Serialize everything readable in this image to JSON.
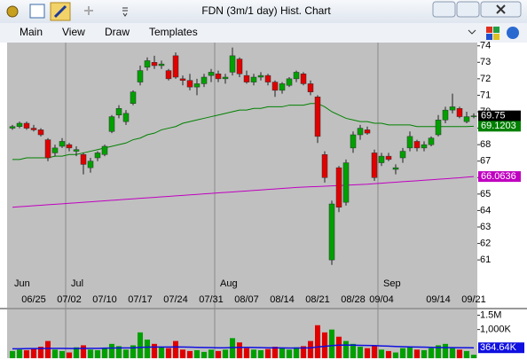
{
  "window": {
    "title": "FDN (3m/1 day) Hist. Chart"
  },
  "menu": [
    "Main",
    "View",
    "Draw",
    "Templates"
  ],
  "chart_data": [
    {
      "type": "candlestick",
      "categories": [
        null,
        null,
        null,
        "06/25",
        null,
        null,
        null,
        null,
        "07/02",
        null,
        null,
        null,
        null,
        "07/10",
        null,
        null,
        null,
        null,
        "07/17",
        null,
        null,
        null,
        null,
        "07/24",
        null,
        null,
        null,
        null,
        "07/31",
        null,
        null,
        null,
        null,
        "08/07",
        null,
        null,
        null,
        null,
        "08/14",
        null,
        null,
        null,
        null,
        "08/21",
        null,
        null,
        null,
        null,
        "08/28",
        null,
        null,
        null,
        "09/04",
        null,
        null,
        null,
        null,
        null,
        null,
        null,
        "09/14",
        null,
        null,
        null,
        null,
        "09/21"
      ],
      "months": [
        {
          "label": "Jun",
          "index": 0
        },
        {
          "label": "Jul",
          "index": 8
        },
        {
          "label": "Aug",
          "index": 29
        },
        {
          "label": "Sep",
          "index": 52
        }
      ],
      "open": [
        69.0,
        69.1,
        69.3,
        69.0,
        68.9,
        68.3,
        67.5,
        67.9,
        68.0,
        67.6,
        67.4,
        66.6,
        67.2,
        67.4,
        68.8,
        69.8,
        69.4,
        70.5,
        71.8,
        72.7,
        73.0,
        72.8,
        72.5,
        73.4,
        72.0,
        71.9,
        71.5,
        71.7,
        72.2,
        72.3,
        72.0,
        72.4,
        73.2,
        72.2,
        71.8,
        72.1,
        72.2,
        71.8,
        71.3,
        71.6,
        72.0,
        72.3,
        71.7,
        70.9,
        67.4,
        61.0,
        66.6,
        64.5,
        67.8,
        68.6,
        68.9,
        67.5,
        66.9,
        67.3,
        66.5,
        67.2,
        67.8,
        68.2,
        67.8,
        68.0,
        68.6,
        69.5,
        70.1,
        70.2,
        69.4,
        69.7
      ],
      "high": [
        69.2,
        69.4,
        69.4,
        69.2,
        69.0,
        68.4,
        68.0,
        68.4,
        68.1,
        67.9,
        67.5,
        67.2,
        67.6,
        68.0,
        69.8,
        70.4,
        70.1,
        71.3,
        72.8,
        73.3,
        73.4,
        73.1,
        72.6,
        73.6,
        72.2,
        72.3,
        72.0,
        72.3,
        72.6,
        72.5,
        72.3,
        73.9,
        73.3,
        72.5,
        72.3,
        72.4,
        72.3,
        71.9,
        71.8,
        72.1,
        72.5,
        72.4,
        71.9,
        71.0,
        67.6,
        64.6,
        66.7,
        67.1,
        68.8,
        69.2,
        69.1,
        67.7,
        67.5,
        67.5,
        66.8,
        67.8,
        68.8,
        68.3,
        68.2,
        68.5,
        69.8,
        70.3,
        71.1,
        70.3,
        70.0,
        69.9
      ],
      "low": [
        68.9,
        69.0,
        68.9,
        68.8,
        68.5,
        67.0,
        67.3,
        67.8,
        67.6,
        67.3,
        66.2,
        66.3,
        67.0,
        67.3,
        68.7,
        69.6,
        69.2,
        70.4,
        71.6,
        72.5,
        72.6,
        72.6,
        71.9,
        72.0,
        71.6,
        71.3,
        71.0,
        71.5,
        71.8,
        71.8,
        71.7,
        72.2,
        72.1,
        71.7,
        71.6,
        71.9,
        71.6,
        70.9,
        71.1,
        71.5,
        71.8,
        71.6,
        71.0,
        68.1,
        65.7,
        60.7,
        63.9,
        64.3,
        67.5,
        68.3,
        68.6,
        65.8,
        66.7,
        67.0,
        66.2,
        66.9,
        67.6,
        67.6,
        67.6,
        67.9,
        68.5,
        69.3,
        69.9,
        69.6,
        69.3,
        69.6
      ],
      "close": [
        69.1,
        69.3,
        69.0,
        68.9,
        68.6,
        67.2,
        67.8,
        68.2,
        67.8,
        67.7,
        66.8,
        67.0,
        67.5,
        67.9,
        69.7,
        70.2,
        69.9,
        71.2,
        72.5,
        73.1,
        72.8,
        72.9,
        72.0,
        72.1,
        71.9,
        71.5,
        71.7,
        72.1,
        72.4,
        72.0,
        72.1,
        73.4,
        72.3,
        71.8,
        72.1,
        72.2,
        71.8,
        71.3,
        71.7,
        72.0,
        72.4,
        71.7,
        71.2,
        68.5,
        66.0,
        64.4,
        64.2,
        66.9,
        68.6,
        69.0,
        68.7,
        66.0,
        67.3,
        67.1,
        66.6,
        67.6,
        68.5,
        67.8,
        68.0,
        68.4,
        69.5,
        70.1,
        70.3,
        69.7,
        69.7,
        69.75
      ],
      "up_color": "#00a000",
      "down_color": "#e00000",
      "last_color": "#000000",
      "series": [
        {
          "color": "#008000",
          "values": [
            67.1,
            67.1,
            67.2,
            67.2,
            67.2,
            67.2,
            67.3,
            67.3,
            67.4,
            67.4,
            67.5,
            67.6,
            67.7,
            67.8,
            67.9,
            68.0,
            68.1,
            68.3,
            68.4,
            68.6,
            68.7,
            68.9,
            69.0,
            69.1,
            69.3,
            69.4,
            69.5,
            69.6,
            69.7,
            69.8,
            69.9,
            70.0,
            70.1,
            70.1,
            70.2,
            70.2,
            70.3,
            70.3,
            70.3,
            70.4,
            70.4,
            70.4,
            70.5,
            70.5,
            70.3,
            70.0,
            69.8,
            69.6,
            69.5,
            69.4,
            69.4,
            69.3,
            69.3,
            69.2,
            69.2,
            69.2,
            69.2,
            69.1,
            69.1,
            69.1,
            69.1,
            69.1,
            69.1,
            69.1,
            69.1,
            69.1203
          ]
        },
        {
          "color": "#c000c0",
          "values": [
            64.2,
            64.23,
            64.26,
            64.29,
            64.32,
            64.35,
            64.38,
            64.41,
            64.44,
            64.47,
            64.5,
            64.53,
            64.56,
            64.59,
            64.62,
            64.65,
            64.68,
            64.71,
            64.74,
            64.77,
            64.8,
            64.83,
            64.86,
            64.89,
            64.92,
            64.95,
            64.98,
            65.01,
            65.04,
            65.07,
            65.1,
            65.13,
            65.16,
            65.19,
            65.22,
            65.25,
            65.28,
            65.31,
            65.34,
            65.37,
            65.4,
            65.42,
            65.44,
            65.46,
            65.48,
            65.5,
            65.52,
            65.54,
            65.56,
            65.58,
            65.6,
            65.63,
            65.66,
            65.69,
            65.72,
            65.75,
            65.78,
            65.81,
            65.84,
            65.87,
            65.9,
            65.93,
            65.96,
            65.99,
            66.03,
            66.0636
          ]
        }
      ],
      "ylim": [
        58.1,
        74.2
      ],
      "yticks": [
        61,
        62,
        63,
        64,
        65,
        66,
        67,
        68,
        69,
        70,
        71,
        72,
        73,
        74
      ]
    },
    {
      "type": "bar",
      "values": [
        250000,
        300000,
        280000,
        350000,
        400000,
        600000,
        300000,
        250000,
        200000,
        380000,
        450000,
        300000,
        280000,
        350000,
        500000,
        420000,
        300000,
        450000,
        900000,
        650000,
        500000,
        400000,
        350000,
        600000,
        300000,
        250000,
        280000,
        220000,
        300000,
        250000,
        300000,
        700000,
        550000,
        350000,
        300000,
        280000,
        320000,
        400000,
        350000,
        300000,
        380000,
        420000,
        600000,
        1150000,
        900000,
        1000000,
        750000,
        600000,
        500000,
        400000,
        350000,
        450000,
        300000,
        250000,
        200000,
        350000,
        400000,
        300000,
        280000,
        350000,
        450000,
        500000,
        350000,
        300000,
        250000,
        120000
      ],
      "series": [
        {
          "color": "#1010e0",
          "values": [
            330000,
            330000,
            335000,
            335000,
            340000,
            345000,
            345000,
            345000,
            340000,
            340000,
            345000,
            345000,
            345000,
            350000,
            355000,
            360000,
            360000,
            365000,
            380000,
            385000,
            390000,
            390000,
            390000,
            395000,
            390000,
            385000,
            380000,
            375000,
            370000,
            365000,
            365000,
            375000,
            380000,
            380000,
            375000,
            370000,
            365000,
            365000,
            360000,
            355000,
            355000,
            360000,
            365000,
            395000,
            415000,
            440000,
            455000,
            460000,
            455000,
            450000,
            445000,
            440000,
            430000,
            420000,
            410000,
            400000,
            395000,
            390000,
            385000,
            380000,
            375000,
            372000,
            370000,
            368000,
            366000,
            364640
          ],
          "value_labels": [
            null,
            null,
            null,
            null,
            null,
            null,
            null,
            null,
            null,
            null,
            null,
            null,
            null,
            null,
            null,
            null,
            null,
            null,
            null,
            null,
            null,
            null,
            null,
            null,
            null,
            null,
            null,
            null,
            null,
            null,
            null,
            null,
            null,
            null,
            null,
            null,
            null,
            null,
            null,
            null,
            null,
            null,
            null,
            null,
            null,
            null,
            null,
            null,
            null,
            null,
            null,
            null,
            null,
            null,
            null,
            null,
            null,
            null,
            null,
            null,
            null,
            null,
            null,
            null,
            null,
            "364.64K"
          ]
        }
      ],
      "ylim": [
        0,
        1700000
      ],
      "yticks": [
        {
          "value": 1000000,
          "label": "1,000K"
        },
        {
          "value": 1500000,
          "label": "1.5M"
        }
      ]
    }
  ]
}
